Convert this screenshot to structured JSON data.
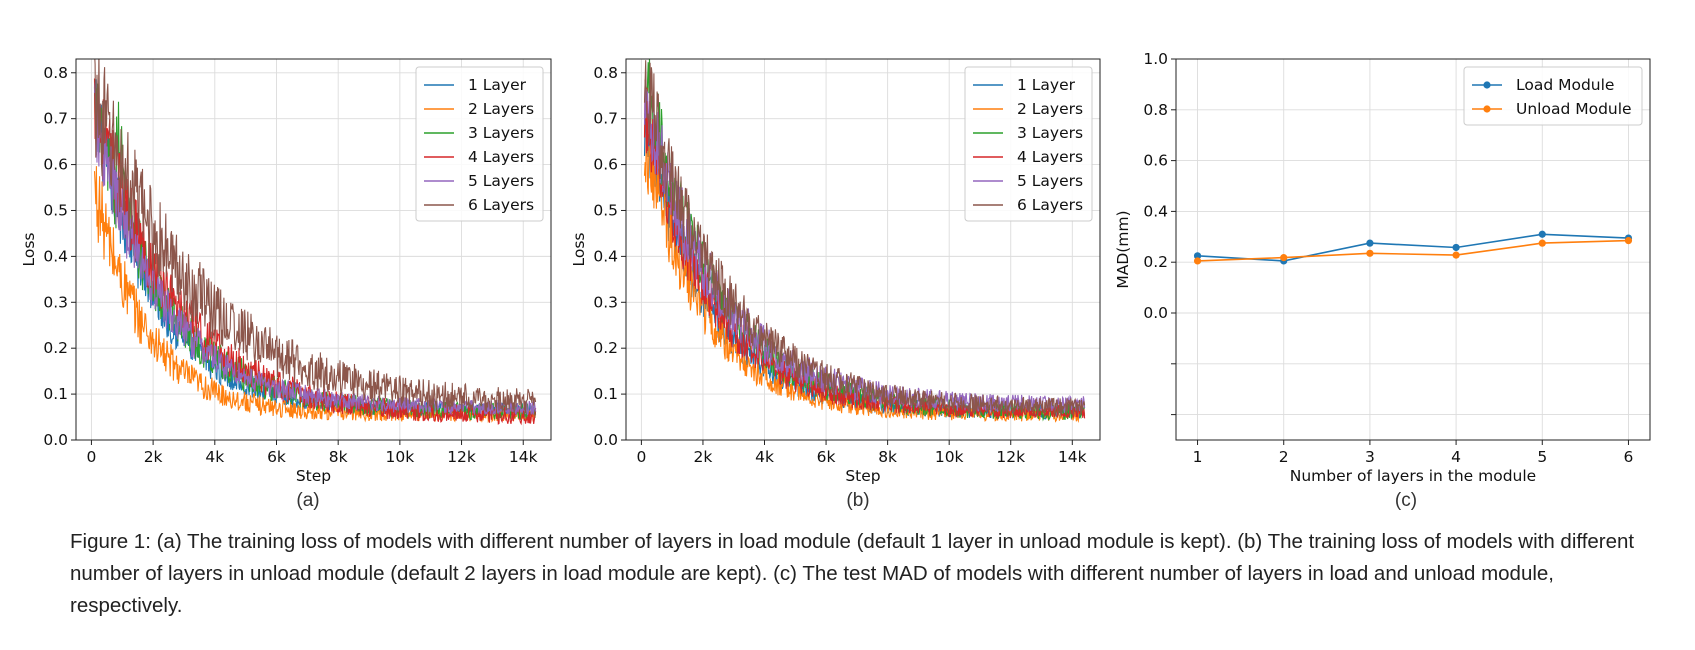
{
  "caption": "Figure 1: (a) The training loss of models with different number of layers in load module (default 1 layer in unload module is kept). (b) The training loss of models with different number of layers in unload module (default 2 layers in load module are kept). (c) The test MAD of models with different number of layers in load and unload module, respectively.",
  "colors": {
    "1 Layer": "#1f77b4",
    "2 Layers": "#ff7f0e",
    "3 Layers": "#2ca02c",
    "4 Layers": "#d62728",
    "5 Layers": "#9467bd",
    "6 Layers": "#8c564b"
  },
  "chart_data": [
    {
      "label": "(a)",
      "type": "line",
      "xlabel": "Step",
      "ylabel": "Loss",
      "xlim": [
        -500,
        14900
      ],
      "ylim": [
        0,
        0.83
      ],
      "xticks": [
        0,
        2000,
        4000,
        6000,
        8000,
        10000,
        12000,
        14000
      ],
      "xtick_labels": [
        "0",
        "2k",
        "4k",
        "6k",
        "8k",
        "10k",
        "12k",
        "14k"
      ],
      "yticks": [
        0.0,
        0.1,
        0.2,
        0.3,
        0.4,
        0.5,
        0.6,
        0.7,
        0.8
      ],
      "ytick_labels": [
        "0.0",
        "0.1",
        "0.2",
        "0.3",
        "0.4",
        "0.5",
        "0.6",
        "0.7",
        "0.8"
      ],
      "grid": true,
      "legend": "top-right",
      "series": [
        {
          "name": "1 Layer",
          "x_range": [
            100,
            14400
          ],
          "start": 0.72,
          "end": 0.065,
          "decay": 2000,
          "noise": 0.03
        },
        {
          "name": "2 Layers",
          "x_range": [
            100,
            14400
          ],
          "start": 0.55,
          "end": 0.055,
          "decay": 1700,
          "noise": 0.03
        },
        {
          "name": "3 Layers",
          "x_range": [
            100,
            14400
          ],
          "start": 0.72,
          "end": 0.06,
          "decay": 2300,
          "noise": 0.035,
          "spike": [
            800,
            1700,
            0.78
          ]
        },
        {
          "name": "4 Layers",
          "x_range": [
            100,
            14400
          ],
          "start": 0.73,
          "end": 0.05,
          "decay": 2600,
          "noise": 0.035
        },
        {
          "name": "5 Layers",
          "x_range": [
            100,
            14400
          ],
          "start": 0.7,
          "end": 0.07,
          "decay": 2200,
          "noise": 0.03
        },
        {
          "name": "6 Layers",
          "x_range": [
            100,
            14400
          ],
          "start": 0.75,
          "end": 0.075,
          "decay": 3300,
          "noise": 0.045
        }
      ]
    },
    {
      "label": "(b)",
      "type": "line",
      "xlabel": "Step",
      "ylabel": "Loss",
      "xlim": [
        -500,
        14900
      ],
      "ylim": [
        0,
        0.83
      ],
      "xticks": [
        0,
        2000,
        4000,
        6000,
        8000,
        10000,
        12000,
        14000
      ],
      "xtick_labels": [
        "0",
        "2k",
        "4k",
        "6k",
        "8k",
        "10k",
        "12k",
        "14k"
      ],
      "yticks": [
        0.0,
        0.1,
        0.2,
        0.3,
        0.4,
        0.5,
        0.6,
        0.7,
        0.8
      ],
      "ytick_labels": [
        "0.0",
        "0.1",
        "0.2",
        "0.3",
        "0.4",
        "0.5",
        "0.6",
        "0.7",
        "0.8"
      ],
      "grid": true,
      "legend": "top-right",
      "series": [
        {
          "name": "1 Layer",
          "x_range": [
            100,
            14400
          ],
          "start": 0.7,
          "end": 0.06,
          "decay": 2100,
          "noise": 0.03
        },
        {
          "name": "2 Layers",
          "x_range": [
            100,
            14400
          ],
          "start": 0.65,
          "end": 0.055,
          "decay": 2000,
          "noise": 0.03
        },
        {
          "name": "3 Layers",
          "x_range": [
            100,
            14400
          ],
          "start": 0.79,
          "end": 0.06,
          "decay": 2300,
          "noise": 0.035
        },
        {
          "name": "4 Layers",
          "x_range": [
            100,
            14400
          ],
          "start": 0.72,
          "end": 0.06,
          "decay": 2200,
          "noise": 0.03
        },
        {
          "name": "5 Layers",
          "x_range": [
            100,
            14400
          ],
          "start": 0.75,
          "end": 0.075,
          "decay": 2400,
          "noise": 0.035
        },
        {
          "name": "6 Layers",
          "x_range": [
            100,
            14400
          ],
          "start": 0.79,
          "end": 0.07,
          "decay": 2500,
          "noise": 0.035
        }
      ]
    },
    {
      "label": "(c)",
      "type": "line",
      "xlabel": "Number of layers in the module",
      "ylabel": "MAD(mm)",
      "xlim": [
        0.75,
        6.25
      ],
      "ylim": [
        -0.5,
        1.0
      ],
      "xticks": [
        1,
        2,
        3,
        4,
        5,
        6
      ],
      "xtick_labels": [
        "1",
        "2",
        "3",
        "4",
        "5",
        "6"
      ],
      "yticks": [
        1.0,
        0.8,
        0.6,
        0.4,
        0.2,
        0.0,
        -0.2,
        -0.4
      ],
      "ytick_labels": [
        "1.0",
        "0.8",
        "0.6",
        "0.4",
        "0.2",
        "0.0",
        "",
        ""
      ],
      "grid": true,
      "legend": "top-right",
      "x": [
        1,
        2,
        3,
        4,
        5,
        6
      ],
      "series": [
        {
          "name": "Load Module",
          "color": "#1f77b4",
          "values": [
            0.225,
            0.205,
            0.275,
            0.258,
            0.31,
            0.295
          ]
        },
        {
          "name": "Unload Module",
          "color": "#ff7f0e",
          "values": [
            0.205,
            0.218,
            0.235,
            0.228,
            0.275,
            0.285
          ]
        }
      ]
    }
  ]
}
